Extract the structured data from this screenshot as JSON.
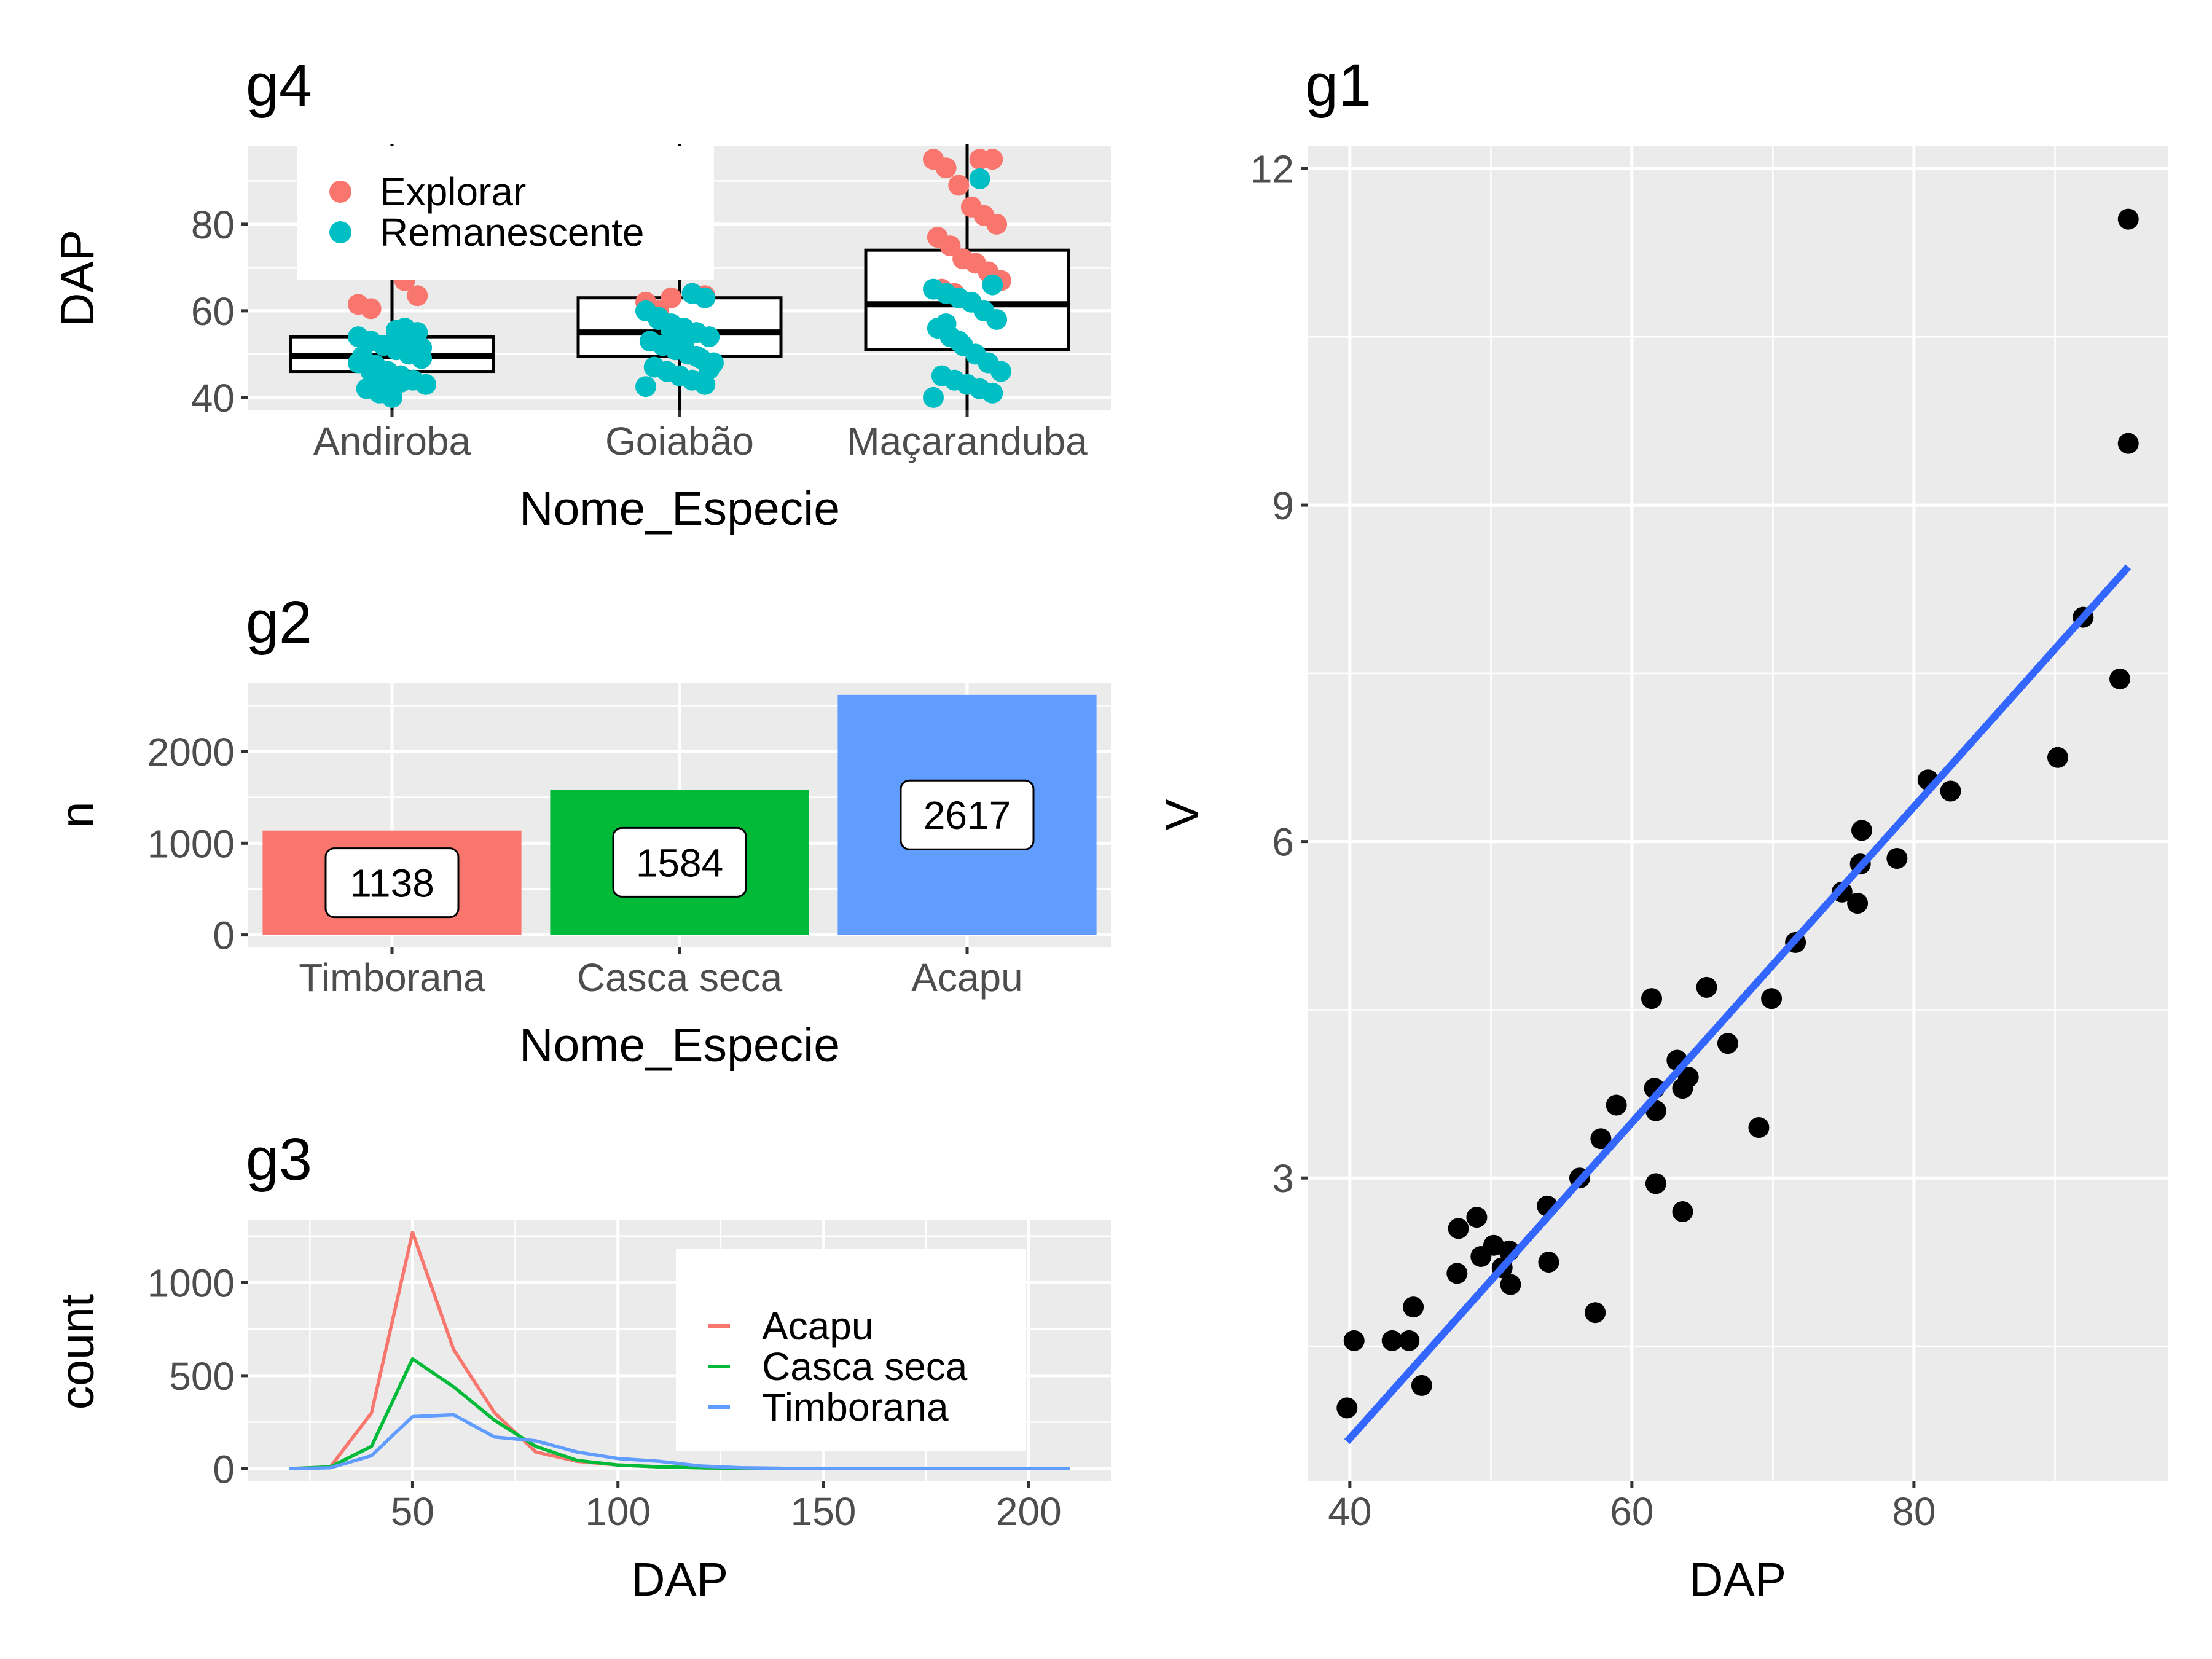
{
  "chart_data": [
    {
      "id": "g4",
      "type": "box",
      "title": "g4",
      "xlabel": "Nome_Especie",
      "ylabel": "DAP",
      "categories": [
        "Andiroba",
        "Goiabão",
        "Maçaranduba"
      ],
      "ylim": [
        37,
        98
      ],
      "yticks": [
        40,
        60,
        80
      ],
      "legend": {
        "position": "top-left",
        "entries": [
          "Explorar",
          "Remanescente"
        ]
      },
      "colors": {
        "Explorar": "#F8766D",
        "Remanescente": "#00BFC4"
      },
      "boxes": [
        {
          "category": "Andiroba",
          "q1": 46,
          "median": 49.5,
          "q3": 54
        },
        {
          "category": "Goiabão",
          "q1": 49.5,
          "median": 55,
          "q3": 63
        },
        {
          "category": "Maçaranduba",
          "q1": 51,
          "median": 61.5,
          "q3": 74
        }
      ],
      "points": [
        {
          "category": "Andiroba",
          "group": "Explorar",
          "values": [
            67,
            63.5,
            61.5,
            60.5
          ]
        },
        {
          "category": "Andiroba",
          "group": "Remanescente",
          "values": [
            56,
            55,
            54,
            53,
            52,
            51,
            50,
            49,
            48,
            47,
            46,
            45,
            44,
            43,
            42,
            41,
            40,
            52,
            50,
            48,
            46,
            44,
            55.5,
            53.5,
            51.5,
            49.5,
            47.5,
            45.5,
            43.5
          ]
        },
        {
          "category": "Goiabão",
          "group": "Explorar",
          "values": [
            64,
            63.5,
            62,
            60,
            63
          ]
        },
        {
          "category": "Goiabão",
          "group": "Remanescente",
          "values": [
            64,
            63,
            60,
            58,
            57,
            56,
            55,
            54,
            53,
            52,
            51,
            50,
            49,
            48,
            47,
            46,
            45,
            44,
            43,
            42.5,
            58.5,
            55.5,
            52.5,
            49.5,
            46.5
          ]
        },
        {
          "category": "Maçaranduba",
          "group": "Explorar",
          "values": [
            95,
            95,
            95,
            93,
            89,
            84,
            82,
            80,
            77,
            75,
            72,
            71,
            69,
            67,
            65,
            64
          ]
        },
        {
          "category": "Maçaranduba",
          "group": "Remanescente",
          "values": [
            90.5,
            66,
            65,
            64,
            63,
            62,
            60,
            58,
            56,
            54,
            52,
            50,
            48,
            46,
            45,
            44,
            43,
            42,
            41,
            40,
            57,
            53
          ]
        }
      ]
    },
    {
      "id": "g2",
      "type": "bar",
      "title": "g2",
      "xlabel": "Nome_Especie",
      "ylabel": "n",
      "categories": [
        "Timborana",
        "Casca seca",
        "Acapu"
      ],
      "values": [
        1138,
        1584,
        2617
      ],
      "labels": [
        "1138",
        "1584",
        "2617"
      ],
      "colors": [
        "#F8766D",
        "#00BA38",
        "#619CFF"
      ],
      "ylim": [
        -130,
        2750
      ],
      "yticks": [
        0,
        1000,
        2000
      ]
    },
    {
      "id": "g3",
      "type": "line",
      "title": "g3",
      "xlabel": "DAP",
      "ylabel": "count",
      "xlim": [
        10,
        220
      ],
      "ylim": [
        -65,
        1335
      ],
      "xticks": [
        50,
        100,
        150,
        200
      ],
      "yticks": [
        0,
        500,
        1000
      ],
      "legend": {
        "position": "right",
        "entries": [
          "Acapu",
          "Casca seca",
          "Timborana"
        ]
      },
      "series": [
        {
          "name": "Acapu",
          "color": "#F8766D",
          "x": [
            20,
            30,
            40,
            50,
            60,
            70,
            80,
            90,
            100,
            110,
            120,
            130,
            140,
            150,
            160,
            170,
            180,
            190,
            200,
            210
          ],
          "y": [
            0,
            10,
            300,
            1270,
            640,
            300,
            90,
            40,
            20,
            10,
            5,
            3,
            2,
            1,
            0,
            0,
            0,
            0,
            0,
            0
          ]
        },
        {
          "name": "Casca seca",
          "color": "#00BA38",
          "x": [
            20,
            30,
            40,
            50,
            60,
            70,
            80,
            90,
            100,
            110,
            120,
            130,
            140,
            150,
            160,
            170,
            180,
            190,
            200,
            210
          ],
          "y": [
            0,
            10,
            120,
            590,
            440,
            260,
            120,
            45,
            20,
            10,
            5,
            2,
            1,
            0,
            0,
            0,
            0,
            0,
            0,
            0
          ]
        },
        {
          "name": "Timborana",
          "color": "#619CFF",
          "x": [
            20,
            30,
            40,
            50,
            60,
            70,
            80,
            90,
            100,
            110,
            120,
            130,
            140,
            150,
            160,
            170,
            180,
            190,
            200,
            210
          ],
          "y": [
            0,
            5,
            70,
            280,
            290,
            170,
            150,
            90,
            55,
            40,
            15,
            5,
            2,
            1,
            0,
            0,
            0,
            0,
            0,
            0
          ]
        }
      ]
    },
    {
      "id": "g1",
      "type": "scatter",
      "title": "g1",
      "xlabel": "DAP",
      "ylabel": "V",
      "xlim": [
        37,
        98
      ],
      "ylim": [
        0.3,
        12.2
      ],
      "xticks": [
        40,
        60,
        80
      ],
      "yticks": [
        3,
        6,
        9,
        12
      ],
      "point_color": "#000000",
      "fit_color": "#3366FF",
      "fit_line": {
        "x": [
          39.8,
          95.2
        ],
        "y": [
          0.65,
          8.45
        ]
      },
      "points": [
        {
          "x": 39.8,
          "y": 0.95
        },
        {
          "x": 40.3,
          "y": 1.55
        },
        {
          "x": 43,
          "y": 1.55
        },
        {
          "x": 44.2,
          "y": 1.55
        },
        {
          "x": 44.5,
          "y": 1.85
        },
        {
          "x": 45.1,
          "y": 1.15
        },
        {
          "x": 47.7,
          "y": 2.55
        },
        {
          "x": 47.6,
          "y": 2.15
        },
        {
          "x": 49,
          "y": 2.65
        },
        {
          "x": 49.3,
          "y": 2.3
        },
        {
          "x": 50.2,
          "y": 2.4
        },
        {
          "x": 50.8,
          "y": 2.2
        },
        {
          "x": 51.3,
          "y": 2.35
        },
        {
          "x": 51.4,
          "y": 2.05
        },
        {
          "x": 54,
          "y": 2.75
        },
        {
          "x": 54.1,
          "y": 2.25
        },
        {
          "x": 56.3,
          "y": 3
        },
        {
          "x": 57.4,
          "y": 1.8
        },
        {
          "x": 57.8,
          "y": 3.35
        },
        {
          "x": 58.9,
          "y": 3.65
        },
        {
          "x": 61.4,
          "y": 4.6
        },
        {
          "x": 61.6,
          "y": 3.8
        },
        {
          "x": 61.7,
          "y": 3.6
        },
        {
          "x": 61.7,
          "y": 2.95
        },
        {
          "x": 63.2,
          "y": 4.05
        },
        {
          "x": 63.6,
          "y": 3.8
        },
        {
          "x": 64,
          "y": 3.9
        },
        {
          "x": 63.6,
          "y": 2.7
        },
        {
          "x": 65.3,
          "y": 4.7
        },
        {
          "x": 66.8,
          "y": 4.2
        },
        {
          "x": 69,
          "y": 3.45
        },
        {
          "x": 69.9,
          "y": 4.6
        },
        {
          "x": 71.6,
          "y": 5.1
        },
        {
          "x": 74.9,
          "y": 5.55
        },
        {
          "x": 76,
          "y": 5.45
        },
        {
          "x": 76.2,
          "y": 5.8
        },
        {
          "x": 76.3,
          "y": 6.1
        },
        {
          "x": 78.8,
          "y": 5.85
        },
        {
          "x": 81,
          "y": 6.55
        },
        {
          "x": 82.6,
          "y": 6.45
        },
        {
          "x": 90.2,
          "y": 6.75
        },
        {
          "x": 92,
          "y": 8
        },
        {
          "x": 94.6,
          "y": 7.45
        },
        {
          "x": 95.2,
          "y": 9.55
        },
        {
          "x": 95.2,
          "y": 11.55
        }
      ]
    }
  ]
}
